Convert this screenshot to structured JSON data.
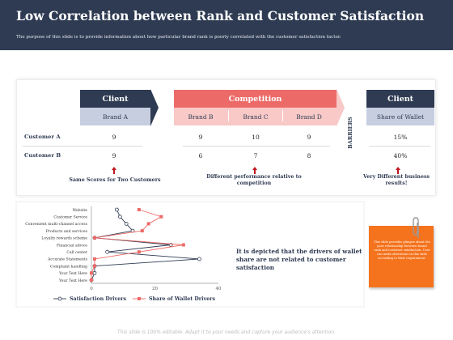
{
  "header": {
    "title": "Low Correlation between Rank and Customer Satisfaction",
    "subtitle": "The purpose of this slide is to provide information about how particular brand rank is poorly correlated with the customer satisfaction factor."
  },
  "table": {
    "client_header": "Client",
    "competition_header": "Competition",
    "client2_header": "Client",
    "brand_a": "Brand A",
    "brand_b": "Brand B",
    "brand_c": "Brand C",
    "brand_d": "Brand D",
    "share_of_wallet": "Share of Wallet",
    "barriers": "BARRIERS",
    "rows": [
      {
        "label": "Customer A",
        "brand_a": "9",
        "brand_b": "9",
        "brand_c": "10",
        "brand_d": "9",
        "share": "15%"
      },
      {
        "label": "Customer B",
        "brand_a": "9",
        "brand_b": "6",
        "brand_c": "7",
        "brand_d": "8",
        "share": "40%"
      }
    ],
    "notes": [
      "Same Scores for Two Customers",
      "Different performance relative to competition",
      "Very Different business results!"
    ]
  },
  "colors": {
    "navy": "#2e3b52",
    "coral": "#ec6b68",
    "lavender": "#c6cee0",
    "pink": "#f8c9c7",
    "orange": "#f5731d",
    "arrow_red": "#c0171d"
  },
  "chart_data": {
    "type": "line",
    "orientation": "horizontal",
    "categories": [
      "Website",
      "Customer Service",
      "Convenient multi-channel access",
      "Products and services",
      "Loyalty rewards scheme",
      "Financial advice",
      "Call center",
      "Accurate Statements",
      "Complaint handling",
      "Your Text Here",
      "Your Text Here"
    ],
    "series": [
      {
        "name": "Satisfaction Drivers",
        "values": [
          8,
          9,
          11,
          13,
          1,
          25,
          5,
          34,
          1,
          1,
          0
        ],
        "color": "#2e3b52",
        "marker": "circle"
      },
      {
        "name": "Share of Wallet Drivers",
        "values": [
          15,
          22,
          18,
          16,
          1,
          29,
          15,
          1,
          1,
          0,
          0
        ],
        "color": "#ec6b68",
        "marker": "square"
      }
    ],
    "xlim": [
      0,
      40
    ],
    "xticks": [
      "0",
      "20",
      "40"
    ],
    "legend": "bottom"
  },
  "driver_text": "It is depicted that the drivers of wallet share are not related to customer satisfaction",
  "sticky_text": "This slide provides glimpse about the poor relationship between brand rank and customer satisfaction. User can make alterations in this slide according to their requirement.",
  "footer": "This slide is 100% editable. Adapt it to your needs and capture your audience's attention."
}
